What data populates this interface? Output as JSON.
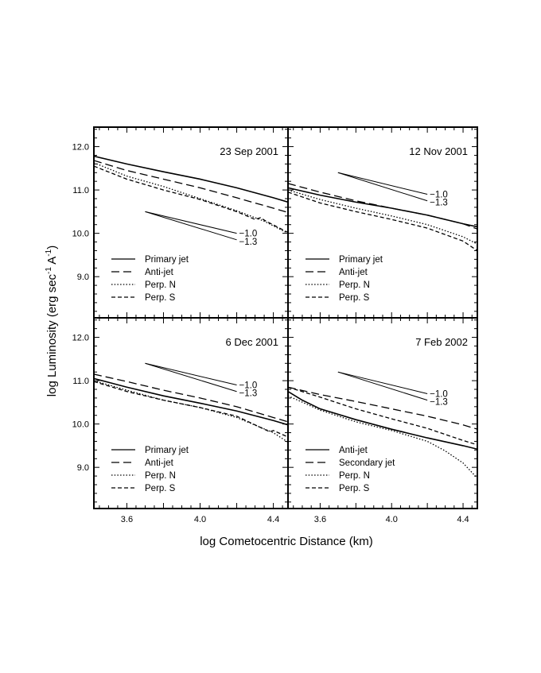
{
  "figure": {
    "xlabel": "log Cometocentric Distance (km)",
    "ylabel_prefix": "log Luminosity (erg sec",
    "ylabel_sup1": "-1",
    "ylabel_mid": " A",
    "ylabel_sup2": "-1",
    "ylabel_suffix": ")"
  },
  "chart_data": [
    {
      "type": "line",
      "title": "23 Sep 2001",
      "xlabel": "log Cometocentric Distance (km)",
      "ylabel": "log Luminosity (erg sec-1 A-1)",
      "xlim": [
        3.42,
        4.48
      ],
      "ylim": [
        8.05,
        12.45
      ],
      "xticks": [
        3.6,
        4.0,
        4.4
      ],
      "yticks": [
        9.0,
        10.0,
        11.0,
        12.0
      ],
      "ytick_labels": [
        "9.0",
        "10.0",
        "11.0",
        "12.0"
      ],
      "show_xtick_labels": false,
      "series": [
        {
          "name": "Primary jet",
          "style": "solid",
          "x": [
            3.42,
            3.6,
            3.8,
            4.0,
            4.2,
            4.4,
            4.48
          ],
          "y": [
            11.78,
            11.6,
            11.42,
            11.25,
            11.05,
            10.82,
            10.72
          ]
        },
        {
          "name": "Anti-jet",
          "style": "longdash",
          "x": [
            3.42,
            3.6,
            3.8,
            4.0,
            4.2,
            4.4,
            4.48
          ],
          "y": [
            11.68,
            11.45,
            11.25,
            11.05,
            10.82,
            10.58,
            10.48
          ]
        },
        {
          "name": "Perp. N",
          "style": "dotted",
          "x": [
            3.42,
            3.6,
            3.8,
            4.0,
            4.2,
            4.35,
            4.48
          ],
          "y": [
            11.63,
            11.32,
            11.08,
            10.8,
            10.52,
            10.28,
            10.0
          ]
        },
        {
          "name": "Perp. S",
          "style": "dashed",
          "x": [
            3.42,
            3.6,
            3.8,
            4.0,
            4.2,
            4.3,
            4.33,
            4.36,
            4.48
          ],
          "y": [
            11.55,
            11.25,
            11.0,
            10.78,
            10.5,
            10.32,
            10.36,
            10.28,
            10.02
          ]
        }
      ],
      "slope_lines": [
        {
          "label": "−1.0",
          "x": [
            3.7,
            4.2
          ],
          "y": [
            10.5,
            10.0
          ]
        },
        {
          "label": "−1.3",
          "x": [
            3.7,
            4.2
          ],
          "y": [
            10.5,
            9.85
          ]
        }
      ],
      "legend": [
        "Primary jet",
        "Anti-jet",
        "Perp. N",
        "Perp. S"
      ]
    },
    {
      "type": "line",
      "title": "12 Nov 2001",
      "xlim": [
        3.42,
        4.48
      ],
      "ylim": [
        8.05,
        12.45
      ],
      "xticks": [
        3.6,
        4.0,
        4.4
      ],
      "yticks": [
        9.0,
        10.0,
        11.0,
        12.0
      ],
      "show_xtick_labels": false,
      "series": [
        {
          "name": "Primary jet",
          "style": "solid",
          "x": [
            3.42,
            3.6,
            3.8,
            4.0,
            4.2,
            4.4,
            4.48
          ],
          "y": [
            11.05,
            10.88,
            10.72,
            10.58,
            10.42,
            10.22,
            10.15
          ]
        },
        {
          "name": "Anti-jet",
          "style": "longdash",
          "x": [
            3.42,
            3.6,
            3.8,
            4.0,
            4.2,
            4.4,
            4.48
          ],
          "y": [
            11.15,
            10.95,
            10.75,
            10.58,
            10.42,
            10.22,
            10.1
          ]
        },
        {
          "name": "Perp. N",
          "style": "dotted",
          "x": [
            3.42,
            3.6,
            3.8,
            4.0,
            4.2,
            4.4,
            4.48
          ],
          "y": [
            11.0,
            10.78,
            10.58,
            10.4,
            10.2,
            9.92,
            9.75
          ]
        },
        {
          "name": "Perp. S",
          "style": "dashed",
          "x": [
            3.42,
            3.6,
            3.8,
            4.0,
            4.2,
            4.4,
            4.48
          ],
          "y": [
            10.95,
            10.7,
            10.5,
            10.32,
            10.12,
            9.82,
            9.6
          ]
        }
      ],
      "slope_lines": [
        {
          "label": "−1.0",
          "x": [
            3.7,
            4.2
          ],
          "y": [
            11.4,
            10.9
          ]
        },
        {
          "label": "−1.3",
          "x": [
            3.7,
            4.2
          ],
          "y": [
            11.4,
            10.75
          ]
        }
      ],
      "legend": [
        "Primary jet",
        "Anti-jet",
        "Perp. N",
        "Perp. S"
      ]
    },
    {
      "type": "line",
      "title": "6 Dec 2001",
      "xlim": [
        3.42,
        4.48
      ],
      "ylim": [
        8.05,
        12.45
      ],
      "xticks": [
        3.6,
        4.0,
        4.4
      ],
      "xtick_labels": [
        "3.6",
        "4.0",
        "4.4"
      ],
      "yticks": [
        9.0,
        10.0,
        11.0,
        12.0
      ],
      "ytick_labels": [
        "9.0",
        "10.0",
        "11.0",
        "12.0"
      ],
      "show_xtick_labels": true,
      "series": [
        {
          "name": "Primary jet",
          "style": "solid",
          "x": [
            3.42,
            3.6,
            3.8,
            4.0,
            4.2,
            4.4,
            4.48
          ],
          "y": [
            11.05,
            10.85,
            10.65,
            10.48,
            10.3,
            10.08,
            9.98
          ]
        },
        {
          "name": "Anti-jet",
          "style": "longdash",
          "x": [
            3.42,
            3.6,
            3.8,
            4.0,
            4.2,
            4.4,
            4.48
          ],
          "y": [
            11.15,
            10.98,
            10.78,
            10.6,
            10.4,
            10.15,
            10.05
          ]
        },
        {
          "name": "Perp. N",
          "style": "dotted",
          "x": [
            3.42,
            3.6,
            3.8,
            4.0,
            4.2,
            4.4,
            4.48
          ],
          "y": [
            11.0,
            10.78,
            10.55,
            10.38,
            10.15,
            9.8,
            9.58
          ]
        },
        {
          "name": "Perp. S",
          "style": "dashed",
          "x": [
            3.42,
            3.6,
            3.8,
            4.0,
            4.2,
            4.38,
            4.4,
            4.48
          ],
          "y": [
            10.98,
            10.75,
            10.55,
            10.38,
            10.18,
            9.82,
            9.85,
            9.7
          ]
        }
      ],
      "slope_lines": [
        {
          "label": "−1.0",
          "x": [
            3.7,
            4.2
          ],
          "y": [
            11.4,
            10.9
          ]
        },
        {
          "label": "−1.3",
          "x": [
            3.7,
            4.2
          ],
          "y": [
            11.4,
            10.75
          ]
        }
      ],
      "legend": [
        "Primary jet",
        "Anti-jet",
        "Perp. N",
        "Perp. S"
      ]
    },
    {
      "type": "line",
      "title": "7 Feb 2002",
      "xlim": [
        3.42,
        4.48
      ],
      "ylim": [
        8.05,
        12.45
      ],
      "xticks": [
        3.6,
        4.0,
        4.4
      ],
      "xtick_labels": [
        "3.6",
        "4.0",
        "4.4"
      ],
      "yticks": [
        9.0,
        10.0,
        11.0,
        12.0
      ],
      "show_xtick_labels": true,
      "series": [
        {
          "name": "Anti-jet",
          "style": "solid",
          "x": [
            3.42,
            3.5,
            3.6,
            3.8,
            4.0,
            4.2,
            4.4,
            4.48
          ],
          "y": [
            10.75,
            10.55,
            10.35,
            10.1,
            9.88,
            9.68,
            9.5,
            9.42
          ]
        },
        {
          "name": "Secondary jet",
          "style": "longdash",
          "x": [
            3.42,
            3.6,
            3.8,
            4.0,
            4.2,
            4.4,
            4.48
          ],
          "y": [
            10.85,
            10.68,
            10.52,
            10.35,
            10.18,
            9.98,
            9.88
          ]
        },
        {
          "name": "Perp. N",
          "style": "dotted",
          "x": [
            3.42,
            3.6,
            3.8,
            4.0,
            4.2,
            4.3,
            4.4,
            4.48
          ],
          "y": [
            10.65,
            10.32,
            10.05,
            9.85,
            9.6,
            9.38,
            9.1,
            8.75
          ]
        },
        {
          "name": "Perp. S",
          "style": "dashed",
          "x": [
            3.42,
            3.6,
            3.8,
            4.0,
            4.2,
            4.4,
            4.48
          ],
          "y": [
            10.85,
            10.62,
            10.35,
            10.12,
            9.9,
            9.62,
            9.52
          ]
        }
      ],
      "slope_lines": [
        {
          "label": "−1.0",
          "x": [
            3.7,
            4.2
          ],
          "y": [
            11.2,
            10.7
          ]
        },
        {
          "label": "−1.3",
          "x": [
            3.7,
            4.2
          ],
          "y": [
            11.2,
            10.55
          ]
        }
      ],
      "legend": [
        "Anti-jet",
        "Secondary jet",
        "Perp. N",
        "Perp. S"
      ]
    }
  ]
}
